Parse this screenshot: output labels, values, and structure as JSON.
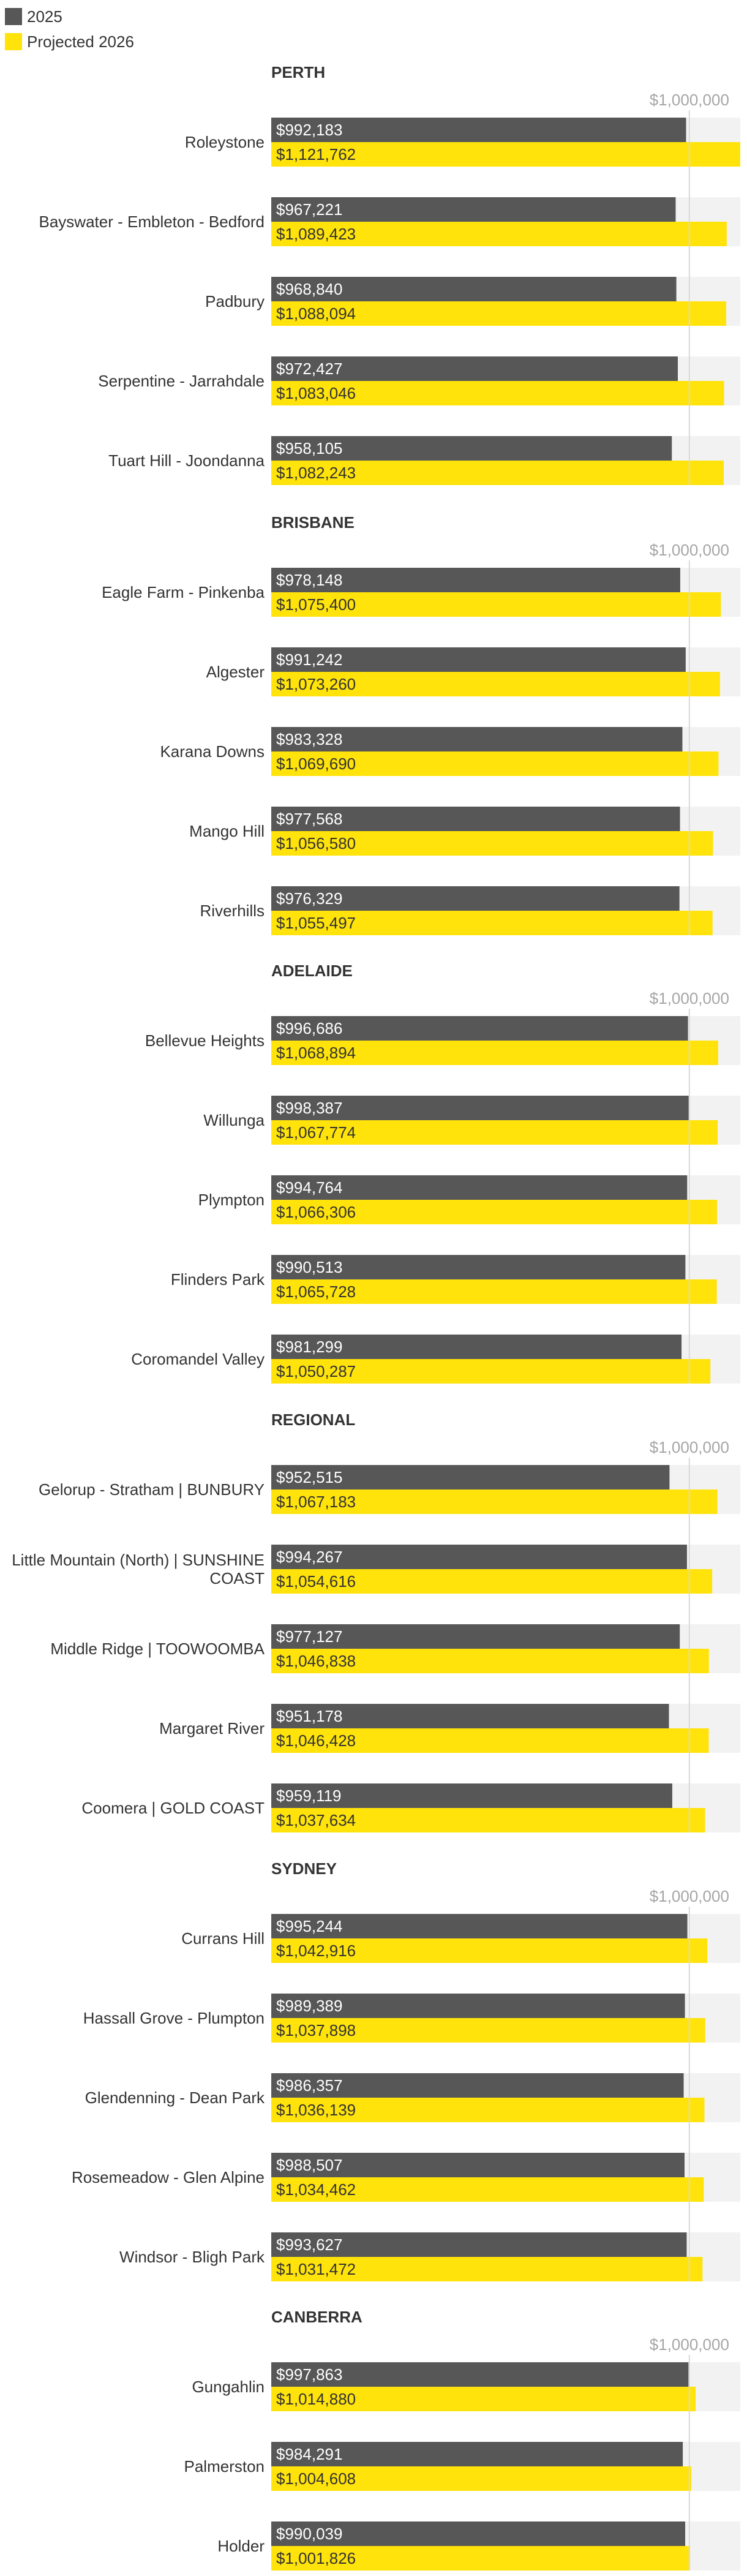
{
  "colors": {
    "series_2025": "#575757",
    "series_2026": "#ffe30a",
    "track": "#f2f2f2",
    "ref_line": "#d9d9d9",
    "text": "#333333",
    "ref_text": "#a6a6a6",
    "bar_text_dark": "#ffffff",
    "bar_text_light": "#333333"
  },
  "chart_data": {
    "type": "bar",
    "orientation": "horizontal",
    "grouped_by": "region",
    "reference_value": 1000000,
    "reference_label": "$1,000,000",
    "xlim": [
      0,
      1121762
    ],
    "legend": {
      "position": "top-left",
      "entries": [
        "2025",
        "Projected 2026"
      ]
    },
    "series": [
      {
        "name": "2025",
        "color": "#575757"
      },
      {
        "name": "Projected 2026",
        "color": "#ffe30a"
      }
    ],
    "groups": [
      {
        "name": "PERTH",
        "items": [
          {
            "label": "Roleystone",
            "v2025": 992183,
            "v2026": 1121762,
            "t2025": "$992,183",
            "t2026": "$1,121,762"
          },
          {
            "label": "Bayswater - Embleton - Bedford",
            "v2025": 967221,
            "v2026": 1089423,
            "t2025": "$967,221",
            "t2026": "$1,089,423"
          },
          {
            "label": "Padbury",
            "v2025": 968840,
            "v2026": 1088094,
            "t2025": "$968,840",
            "t2026": "$1,088,094"
          },
          {
            "label": "Serpentine - Jarrahdale",
            "v2025": 972427,
            "v2026": 1083046,
            "t2025": "$972,427",
            "t2026": "$1,083,046"
          },
          {
            "label": "Tuart Hill - Joondanna",
            "v2025": 958105,
            "v2026": 1082243,
            "t2025": "$958,105",
            "t2026": "$1,082,243"
          }
        ]
      },
      {
        "name": "BRISBANE",
        "items": [
          {
            "label": "Eagle Farm - Pinkenba",
            "v2025": 978148,
            "v2026": 1075400,
            "t2025": "$978,148",
            "t2026": "$1,075,400"
          },
          {
            "label": "Algester",
            "v2025": 991242,
            "v2026": 1073260,
            "t2025": "$991,242",
            "t2026": "$1,073,260"
          },
          {
            "label": "Karana Downs",
            "v2025": 983328,
            "v2026": 1069690,
            "t2025": "$983,328",
            "t2026": "$1,069,690"
          },
          {
            "label": "Mango Hill",
            "v2025": 977568,
            "v2026": 1056580,
            "t2025": "$977,568",
            "t2026": "$1,056,580"
          },
          {
            "label": "Riverhills",
            "v2025": 976329,
            "v2026": 1055497,
            "t2025": "$976,329",
            "t2026": "$1,055,497"
          }
        ]
      },
      {
        "name": "ADELAIDE",
        "items": [
          {
            "label": "Bellevue Heights",
            "v2025": 996686,
            "v2026": 1068894,
            "t2025": "$996,686",
            "t2026": "$1,068,894"
          },
          {
            "label": "Willunga",
            "v2025": 998387,
            "v2026": 1067774,
            "t2025": "$998,387",
            "t2026": "$1,067,774"
          },
          {
            "label": "Plympton",
            "v2025": 994764,
            "v2026": 1066306,
            "t2025": "$994,764",
            "t2026": "$1,066,306"
          },
          {
            "label": "Flinders Park",
            "v2025": 990513,
            "v2026": 1065728,
            "t2025": "$990,513",
            "t2026": "$1,065,728"
          },
          {
            "label": "Coromandel Valley",
            "v2025": 981299,
            "v2026": 1050287,
            "t2025": "$981,299",
            "t2026": "$1,050,287"
          }
        ]
      },
      {
        "name": "REGIONAL",
        "items": [
          {
            "label": "Gelorup - Stratham | BUNBURY",
            "v2025": 952515,
            "v2026": 1067183,
            "t2025": "$952,515",
            "t2026": "$1,067,183"
          },
          {
            "label": "Little Mountain (North) | SUNSHINE COAST",
            "v2025": 994267,
            "v2026": 1054616,
            "t2025": "$994,267",
            "t2026": "$1,054,616"
          },
          {
            "label": "Middle Ridge | TOOWOOMBA",
            "v2025": 977127,
            "v2026": 1046838,
            "t2025": "$977,127",
            "t2026": "$1,046,838"
          },
          {
            "label": "Margaret River",
            "v2025": 951178,
            "v2026": 1046428,
            "t2025": "$951,178",
            "t2026": "$1,046,428"
          },
          {
            "label": "Coomera | GOLD COAST",
            "v2025": 959119,
            "v2026": 1037634,
            "t2025": "$959,119",
            "t2026": "$1,037,634"
          }
        ]
      },
      {
        "name": "SYDNEY",
        "items": [
          {
            "label": "Currans Hill",
            "v2025": 995244,
            "v2026": 1042916,
            "t2025": "$995,244",
            "t2026": "$1,042,916"
          },
          {
            "label": "Hassall Grove - Plumpton",
            "v2025": 989389,
            "v2026": 1037898,
            "t2025": "$989,389",
            "t2026": "$1,037,898"
          },
          {
            "label": "Glendenning - Dean Park",
            "v2025": 986357,
            "v2026": 1036139,
            "t2025": "$986,357",
            "t2026": "$1,036,139"
          },
          {
            "label": "Rosemeadow - Glen Alpine",
            "v2025": 988507,
            "v2026": 1034462,
            "t2025": "$988,507",
            "t2026": "$1,034,462"
          },
          {
            "label": "Windsor - Bligh Park",
            "v2025": 993627,
            "v2026": 1031472,
            "t2025": "$993,627",
            "t2026": "$1,031,472"
          }
        ]
      },
      {
        "name": "CANBERRA",
        "items": [
          {
            "label": "Gungahlin",
            "v2025": 997863,
            "v2026": 1014880,
            "t2025": "$997,863",
            "t2026": "$1,014,880"
          },
          {
            "label": "Palmerston",
            "v2025": 984291,
            "v2026": 1004608,
            "t2025": "$984,291",
            "t2026": "$1,004,608"
          },
          {
            "label": "Holder",
            "v2025": 990039,
            "v2026": 1001826,
            "t2025": "$990,039",
            "t2026": "$1,001,826"
          }
        ]
      }
    ]
  }
}
